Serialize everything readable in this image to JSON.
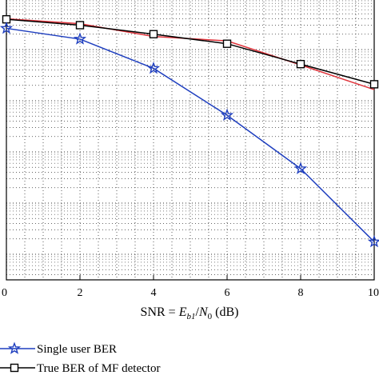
{
  "chart_data": {
    "type": "line",
    "xlabel": {
      "prefix": "SNR = ",
      "var_e": "E",
      "var_e_sub": "b1",
      "slash": "/",
      "var_n": "N",
      "var_n_sub": "0",
      "suffix": " (dB)"
    },
    "xlim": [
      0,
      10
    ],
    "x_ticks": [
      "0",
      "2",
      "4",
      "6",
      "8",
      "10"
    ],
    "y_scale": "log",
    "grid": true,
    "legend_position": "bottom-left (below plot)",
    "x": [
      0,
      2,
      4,
      6,
      8,
      10
    ],
    "series": [
      {
        "name": "Single user BER",
        "color": "#1f3fbf",
        "marker": "star",
        "values": [
          0.26,
          0.16,
          0.043,
          0.0052,
          0.00047,
          1.75e-05
        ]
      },
      {
        "name": "True BER of MF detector",
        "color": "#000000",
        "marker": "square",
        "values": [
          0.39,
          0.3,
          0.2,
          0.13,
          0.052,
          0.021
        ]
      },
      {
        "name": "",
        "color": "#e0343c",
        "marker": "none",
        "values": [
          0.4,
          0.32,
          0.18,
          0.148,
          0.05,
          0.0165
        ]
      }
    ],
    "ylim_log10": [
      -5.5,
      0
    ]
  }
}
